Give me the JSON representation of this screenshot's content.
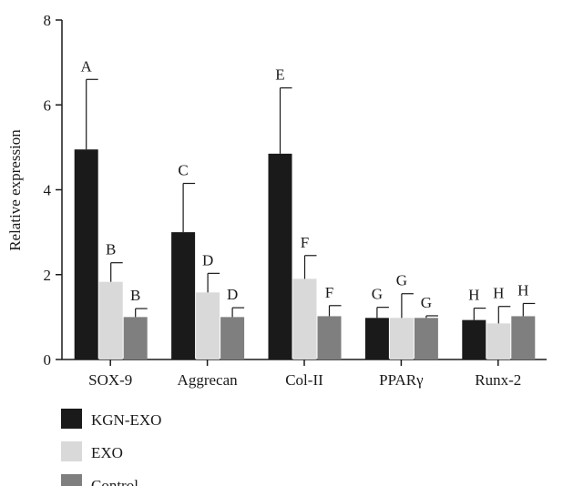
{
  "chart_data": {
    "type": "bar",
    "title": "",
    "xlabel": "",
    "ylabel": "Relative expression",
    "ylim": [
      0,
      8
    ],
    "yticks": [
      0,
      2,
      4,
      6,
      8
    ],
    "grid": false,
    "legend_position": "bottom-left",
    "categories": [
      "SOX-9",
      "Aggrecan",
      "Col-II",
      "PPARγ",
      "Runx-2"
    ],
    "series": [
      {
        "name": "KGN-EXO",
        "color": "#1a1a1a",
        "values": [
          4.95,
          3.0,
          4.85,
          0.98,
          0.93
        ],
        "errors": [
          1.65,
          1.15,
          1.55,
          0.25,
          0.28
        ],
        "labels": [
          "A",
          "C",
          "E",
          "G",
          "H"
        ]
      },
      {
        "name": "EXO",
        "color": "#d9d9d9",
        "values": [
          1.83,
          1.58,
          1.9,
          0.98,
          0.85
        ],
        "errors": [
          0.45,
          0.45,
          0.55,
          0.57,
          0.4
        ],
        "labels": [
          "B",
          "D",
          "F",
          "G",
          "H"
        ]
      },
      {
        "name": "Control",
        "color": "#7f7f7f",
        "values": [
          1.0,
          1.0,
          1.02,
          0.98,
          1.02
        ],
        "errors": [
          0.2,
          0.22,
          0.25,
          0.05,
          0.3
        ],
        "labels": [
          "B",
          "D",
          "F",
          "G",
          "H"
        ]
      }
    ]
  }
}
